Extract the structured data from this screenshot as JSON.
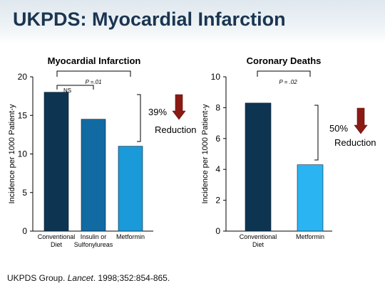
{
  "title": "UKPDS: Myocardial Infarction",
  "citation": {
    "authors": "UKPDS Group.",
    "journal": "Lancet",
    "details": ". 1998;352:854-865."
  },
  "chart_data": [
    {
      "type": "bar",
      "title": "Myocardial Infarction",
      "ylabel": "Incidence per 1000 Patient-y",
      "ylim": [
        0,
        20
      ],
      "yticks": [
        0,
        5,
        10,
        15,
        20
      ],
      "categories": [
        [
          "Conventional",
          "Diet"
        ],
        [
          "Insulin or",
          "Sulfonylureas"
        ],
        [
          "Metformin"
        ]
      ],
      "values": [
        18,
        14.5,
        11
      ],
      "colors": [
        "#0d3552",
        "#126aa3",
        "#1a9ad8"
      ],
      "annotations": {
        "outer_bracket_label": "P =.01",
        "inner_bracket_label": "NS",
        "reduction_percent": "39%",
        "reduction_label": "Reduction"
      },
      "grid": false,
      "legend": "none"
    },
    {
      "type": "bar",
      "title": "Coronary Deaths",
      "ylabel": "Incidence per 1000 Patient-y",
      "ylim": [
        0,
        10
      ],
      "yticks": [
        0,
        2,
        4,
        6,
        8,
        10
      ],
      "categories": [
        [
          "Conventional",
          "Diet"
        ],
        [
          "Metformin"
        ]
      ],
      "values": [
        8.3,
        4.3
      ],
      "colors": [
        "#0d3552",
        "#2bb4f2"
      ],
      "annotations": {
        "outer_bracket_label": "P = .02",
        "reduction_percent": "50%",
        "reduction_label": "Reduction"
      },
      "grid": false,
      "legend": "none"
    }
  ]
}
